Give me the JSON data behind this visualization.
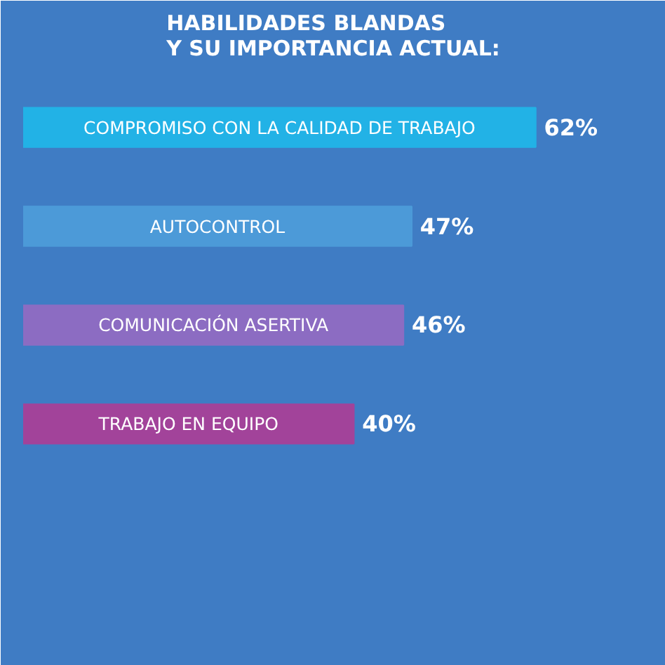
{
  "chart_data": {
    "type": "bar",
    "orientation": "horizontal",
    "title": "HABILIDADES BLANDAS\nY SU IMPORTANCIA ACTUAL:",
    "categories": [
      "COMPROMISO CON LA CALIDAD DE TRABAJO",
      "AUTOCONTROL",
      "COMUNICACIÓN ASERTIVA",
      "TRABAJO EN EQUIPO"
    ],
    "values": [
      62,
      47,
      46,
      40
    ],
    "colors": [
      "#22b2e6",
      "#4c9ad8",
      "#8c6cc2",
      "#a2439a"
    ],
    "value_labels": [
      "62%",
      "47%",
      "46%",
      "40%"
    ],
    "xlim": [
      0,
      75
    ],
    "grid": false,
    "tick_labels": false
  }
}
